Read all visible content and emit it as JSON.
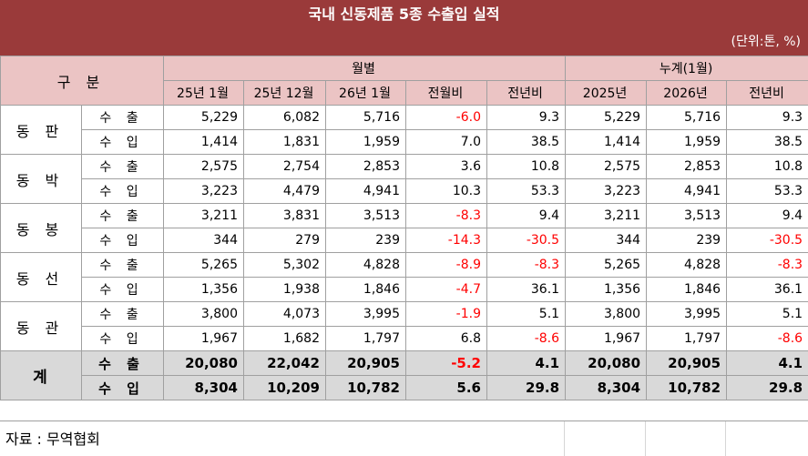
{
  "title": "국내 신동제품 5종 수출입 실적",
  "unit": "(단위:톤, %)",
  "header": {
    "category": "구 분",
    "monthly_group": "월별",
    "cumulative_group": "누계(1월)",
    "columns": [
      "25년 1월",
      "25년 12월",
      "26년 1월",
      "전월비",
      "전년비",
      "2025년",
      "2026년",
      "전년비"
    ]
  },
  "rows": [
    {
      "product": "동 판",
      "kind": "수 출",
      "values": [
        "5,229",
        "6,082",
        "5,716",
        "-6.0",
        "9.3",
        "5,229",
        "5,716",
        "9.3"
      ]
    },
    {
      "product": "동 판",
      "kind": "수 입",
      "values": [
        "1,414",
        "1,831",
        "1,959",
        "7.0",
        "38.5",
        "1,414",
        "1,959",
        "38.5"
      ]
    },
    {
      "product": "동 박",
      "kind": "수 출",
      "values": [
        "2,575",
        "2,754",
        "2,853",
        "3.6",
        "10.8",
        "2,575",
        "2,853",
        "10.8"
      ]
    },
    {
      "product": "동 박",
      "kind": "수 입",
      "values": [
        "3,223",
        "4,479",
        "4,941",
        "10.3",
        "53.3",
        "3,223",
        "4,941",
        "53.3"
      ]
    },
    {
      "product": "동 봉",
      "kind": "수 출",
      "values": [
        "3,211",
        "3,831",
        "3,513",
        "-8.3",
        "9.4",
        "3,211",
        "3,513",
        "9.4"
      ]
    },
    {
      "product": "동 봉",
      "kind": "수 입",
      "values": [
        "344",
        "279",
        "239",
        "-14.3",
        "-30.5",
        "344",
        "239",
        "-30.5"
      ]
    },
    {
      "product": "동 선",
      "kind": "수 출",
      "values": [
        "5,265",
        "5,302",
        "4,828",
        "-8.9",
        "-8.3",
        "5,265",
        "4,828",
        "-8.3"
      ]
    },
    {
      "product": "동 선",
      "kind": "수 입",
      "values": [
        "1,356",
        "1,938",
        "1,846",
        "-4.7",
        "36.1",
        "1,356",
        "1,846",
        "36.1"
      ]
    },
    {
      "product": "동 관",
      "kind": "수 출",
      "values": [
        "3,800",
        "4,073",
        "3,995",
        "-1.9",
        "5.1",
        "3,800",
        "3,995",
        "5.1"
      ]
    },
    {
      "product": "동 관",
      "kind": "수 입",
      "values": [
        "1,967",
        "1,682",
        "1,797",
        "6.8",
        "-8.6",
        "1,967",
        "1,797",
        "-8.6"
      ]
    }
  ],
  "total": {
    "label": "계",
    "rows": [
      {
        "kind": "수 출",
        "values": [
          "20,080",
          "22,042",
          "20,905",
          "-5.2",
          "4.1",
          "20,080",
          "20,905",
          "4.1"
        ]
      },
      {
        "kind": "수 입",
        "values": [
          "8,304",
          "10,209",
          "10,782",
          "5.6",
          "29.8",
          "8,304",
          "10,782",
          "29.8"
        ]
      }
    ]
  },
  "source": "자료 : 무역협회",
  "colors": {
    "title_bg": "#9a3a3a",
    "header_bg": "#ebc4c4",
    "total_bg": "#d9d9d9",
    "negative": "#ff0000"
  }
}
